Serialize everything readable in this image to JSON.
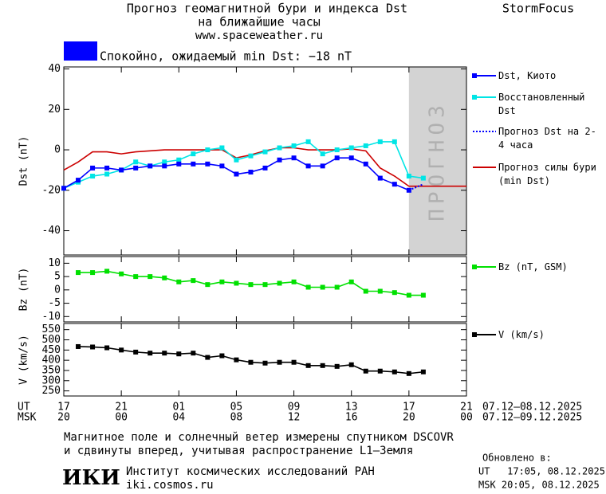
{
  "header": {
    "title_line1": "Прогноз геомагнитной бури и индекса Dst",
    "title_line2": "на ближайшие часы",
    "site": "www.spaceweather.ru",
    "brand": "StormFocus"
  },
  "status": {
    "color": "#0000ff",
    "text": "Спокойно, ожидаемый min Dst: −18 nT"
  },
  "chart_data": [
    {
      "type": "line",
      "y_label": "Dst (nT)",
      "xlim": [
        0,
        28
      ],
      "xticks": [
        0,
        4,
        8,
        12,
        16,
        20,
        24,
        28
      ],
      "ylim": [
        -52,
        41
      ],
      "yticks": [
        40,
        20,
        0,
        -20,
        -40
      ],
      "x": [
        0,
        1,
        2,
        3,
        4,
        5,
        6,
        7,
        8,
        9,
        10,
        11,
        12,
        13,
        14,
        15,
        16,
        17,
        18,
        19,
        20,
        21,
        22,
        23,
        24,
        25,
        26,
        27,
        28
      ],
      "forecast_region": [
        24,
        28
      ],
      "forecast_label": "ПРОГНОЗ",
      "series": [
        {
          "name": "Dst, Киото",
          "color": "#0000ff",
          "marker": "square",
          "style": "solid",
          "values": [
            -19,
            -15,
            -9,
            -9,
            -10,
            -9,
            -8,
            -8,
            -7,
            -7,
            -7,
            -8,
            -12,
            -11,
            -9,
            -5,
            -4,
            -8,
            -8,
            -4,
            -4,
            -7,
            -14,
            -17,
            -20,
            null,
            null,
            null,
            null
          ]
        },
        {
          "name": "Восстановленный Dst",
          "color": "#00e5e5",
          "marker": "square",
          "style": "solid",
          "values": [
            -19,
            -16,
            -13,
            -12,
            -10,
            -6,
            -8,
            -6,
            -5,
            -2,
            0,
            1,
            -5,
            -3,
            -1,
            1,
            2,
            4,
            -2,
            0,
            1,
            2,
            4,
            4,
            -13,
            -14,
            null,
            null,
            null
          ]
        },
        {
          "name": "Прогноз Dst на 2-4 часа",
          "color": "#0000ff",
          "marker": null,
          "style": "dotted",
          "values": [
            null,
            null,
            null,
            null,
            null,
            null,
            null,
            null,
            null,
            null,
            null,
            null,
            null,
            null,
            null,
            null,
            null,
            null,
            null,
            null,
            null,
            null,
            null,
            null,
            -20,
            -17,
            null,
            null,
            null
          ]
        },
        {
          "name": "Прогноз силы бури (min Dst)",
          "color": "#cc0000",
          "marker": null,
          "style": "solid",
          "values": [
            -10,
            -6,
            -1,
            -1,
            -2,
            -1,
            -0.5,
            0,
            0,
            0,
            0,
            0,
            -4,
            -2.5,
            -0.5,
            1,
            1,
            0,
            0,
            0,
            0.5,
            -0.5,
            -9,
            -13,
            -18,
            -18,
            -18,
            -18,
            -18
          ]
        }
      ]
    },
    {
      "type": "line",
      "y_label": "Bz (nT)",
      "xlim": [
        0,
        28
      ],
      "xticks": [
        0,
        4,
        8,
        12,
        16,
        20,
        24,
        28
      ],
      "ylim": [
        -12,
        12.5
      ],
      "yticks": [
        10,
        5,
        0,
        -5,
        -10
      ],
      "x": [
        0,
        1,
        2,
        3,
        4,
        5,
        6,
        7,
        8,
        9,
        10,
        11,
        12,
        13,
        14,
        15,
        16,
        17,
        18,
        19,
        20,
        21,
        22,
        23,
        24,
        25
      ],
      "series": [
        {
          "name": "Bz (nT, GSM)",
          "color": "#00e000",
          "marker": "square",
          "style": "solid",
          "values": [
            null,
            6.5,
            6.5,
            7,
            6,
            5,
            5,
            4.5,
            3,
            3.5,
            2,
            3,
            2.5,
            2,
            2,
            2.5,
            3,
            1,
            1,
            1,
            3,
            -0.5,
            -0.5,
            -1,
            -2,
            -2
          ]
        }
      ]
    },
    {
      "type": "line",
      "y_label": "V (km/s)",
      "xlim": [
        0,
        28
      ],
      "xticks": [
        {
          "value": 0,
          "label": "17"
        },
        {
          "value": 4,
          "label": "21"
        },
        {
          "value": 8,
          "label": "01"
        },
        {
          "value": 12,
          "label": "05"
        },
        {
          "value": 16,
          "label": "09"
        },
        {
          "value": 20,
          "label": "13"
        },
        {
          "value": 24,
          "label": "17"
        },
        {
          "value": 28,
          "label": "21"
        }
      ],
      "xticks_msk": [
        {
          "value": 0,
          "label": "20"
        },
        {
          "value": 4,
          "label": "00"
        },
        {
          "value": 8,
          "label": "04"
        },
        {
          "value": 12,
          "label": "08"
        },
        {
          "value": 16,
          "label": "12"
        },
        {
          "value": 20,
          "label": "16"
        },
        {
          "value": 24,
          "label": "20"
        },
        {
          "value": 28,
          "label": "00"
        }
      ],
      "ut_label": "UT",
      "msk_label": "MSK",
      "ut_range": "07.12–08.12.2025",
      "msk_range": "07.12–09.12.2025",
      "ylim": [
        225,
        580
      ],
      "yticks": [
        550,
        500,
        450,
        400,
        350,
        300,
        250
      ],
      "x": [
        0,
        1,
        2,
        3,
        4,
        5,
        6,
        7,
        8,
        9,
        10,
        11,
        12,
        13,
        14,
        15,
        16,
        17,
        18,
        19,
        20,
        21,
        22,
        23,
        24,
        25
      ],
      "series": [
        {
          "name": "V (km/s)",
          "color": "#000000",
          "marker": "square",
          "style": "solid",
          "values": [
            null,
            467,
            465,
            461,
            450,
            440,
            435,
            435,
            431,
            435,
            414,
            422,
            402,
            390,
            386,
            390,
            390,
            374,
            374,
            370,
            378,
            347,
            347,
            343,
            335,
            343
          ]
        }
      ]
    }
  ],
  "footer": {
    "note_line1": "Магнитное поле и солнечный ветер измерены спутником DSCOVR",
    "note_line2": "и сдвинуты вперед, учитывая распространение L1–Земля",
    "logo": "ИКИ",
    "institute": "Институт космических исследований РАН",
    "institute_site": "iki.cosmos.ru",
    "updated_title": "Обновлено в:",
    "updated_ut": "UT   17:05, 08.12.2025",
    "updated_msk": "MSK 20:05, 08.12.2025"
  }
}
